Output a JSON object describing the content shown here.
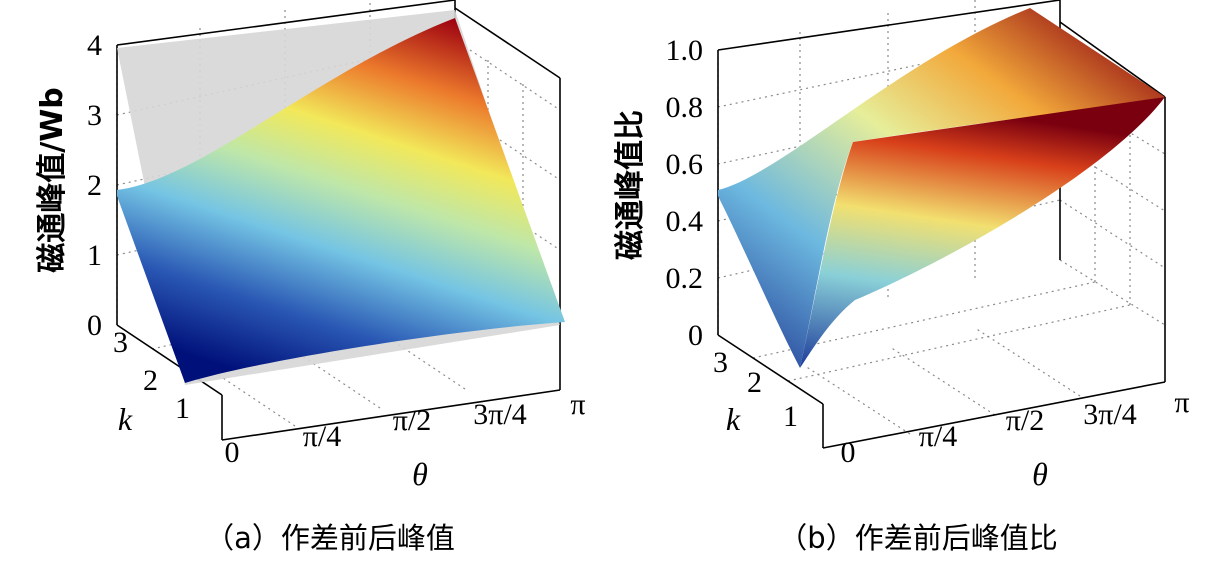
{
  "chart_data": [
    {
      "type": "surface3d",
      "caption": "（a）作差前后峰值",
      "zlabel": "磁通峰值/Wb",
      "xlabel": "θ",
      "ylabel": "k",
      "x_ticks": [
        "0",
        "π/4",
        "π/2",
        "3π/4",
        "π"
      ],
      "y_ticks": [
        "1",
        "2",
        "3"
      ],
      "z_ticks": [
        "0",
        "1",
        "2",
        "3",
        "4"
      ],
      "xlim": [
        0,
        3.1416
      ],
      "ylim": [
        0,
        3
      ],
      "zlim": [
        0,
        4
      ],
      "grid": true,
      "colormap": "jet",
      "surfaces": [
        {
          "role": "before-difference (gray plane)",
          "corners": {
            "theta0_k0": 0.0,
            "thetaPi_k0": 0.0,
            "theta0_k3": 4.0,
            "thetaPi_k3": 4.0
          }
        },
        {
          "role": "after-difference (colored)",
          "corners": {
            "theta0_k0": 0.05,
            "thetaPi_k0": 0.0,
            "theta0_k3": 1.9,
            "thetaPi_k3": 4.0
          }
        }
      ]
    },
    {
      "type": "surface3d",
      "caption": "（b）作差前后峰值比",
      "zlabel": "磁通峰值比",
      "xlabel": "θ",
      "ylabel": "k",
      "x_ticks": [
        "0",
        "π/4",
        "π/2",
        "3π/4",
        "π"
      ],
      "y_ticks": [
        "1",
        "2",
        "3"
      ],
      "z_ticks": [
        "0",
        "0.2",
        "0.4",
        "0.6",
        "0.8",
        "1.0"
      ],
      "xlim": [
        0,
        3.1416
      ],
      "ylim": [
        0,
        3
      ],
      "zlim": [
        0,
        1
      ],
      "grid": true,
      "colormap": "jet",
      "surfaces": [
        {
          "role": "peak ratio",
          "corners": {
            "theta0_k0": 0.0,
            "thetaPi_k0": 0.8,
            "theta0_k3": 0.5,
            "thetaPi_k3": 0.8
          },
          "max": 1.05
        }
      ]
    }
  ]
}
